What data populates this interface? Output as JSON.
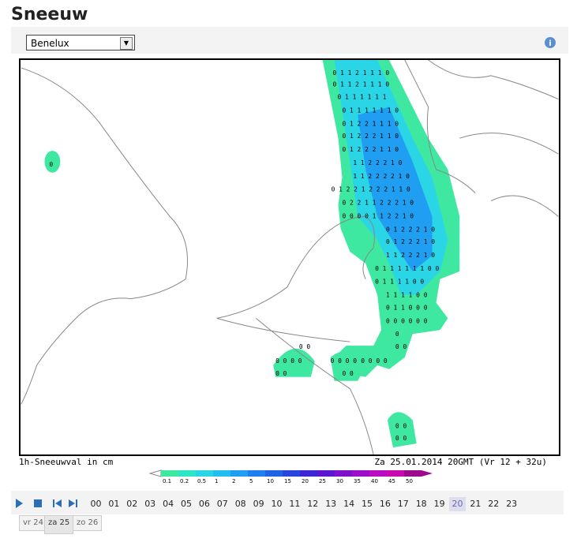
{
  "header": {
    "title": "Sneeuw"
  },
  "toolbar": {
    "region_select": "Benelux"
  },
  "map": {
    "caption_left": "1h-Sneeuwval in cm",
    "caption_right": "Za 25.01.2014 20GMT (Vr 12 + 32u)",
    "grid_rows": [
      "0 1 1 2 1 1 1 0",
      "0 1 1 2 1 1 1 0",
      "0 1 1 1 1 1 1",
      "0 1 1 1 1 1 1 0",
      "0 1 2 2 1 1 1 0",
      "0 1 2 2 2 1 1 0",
      "0 1 2 2 2 1 1 0",
      "1 1 2 2 2 1 0",
      "1 1 2 2 2 2 1 0",
      "0 1 2 2 1 2 2 2 1 1 0",
      "0 2 2 1 1 2 2 2 1 0",
      "0 0 0 0 1 1 2 2 1 0",
      "0 1 2 2 2 1 0",
      "0 1 2 2 2 1 0",
      "1 1 2 2 2 1 0",
      "0 1 1 1 1 1 1 0 0",
      "0 1 1 1 1 0 0",
      "1 1 1 1 0 0",
      "0 1 1 0 0 0",
      "0 0 0 0 0 0",
      "0",
      "0 0",
      "0 0",
      "0 0 0 0",
      "0 0 0 0",
      "0 0 0 0",
      "0 0",
      "0 0",
      "0 0",
      "0 0",
      "0"
    ]
  },
  "legend": [
    {
      "label": "0.1",
      "color": "#3fe8a0"
    },
    {
      "label": "0.2",
      "color": "#2ee6c6"
    },
    {
      "label": "0.5",
      "color": "#2ad6e6"
    },
    {
      "label": "1",
      "color": "#24bdf2"
    },
    {
      "label": "2",
      "color": "#1f9ef2"
    },
    {
      "label": "5",
      "color": "#1e80ef"
    },
    {
      "label": "10",
      "color": "#2062e6"
    },
    {
      "label": "15",
      "color": "#2a44de"
    },
    {
      "label": "20",
      "color": "#3a26d6"
    },
    {
      "label": "25",
      "color": "#5a16d0"
    },
    {
      "label": "30",
      "color": "#7c12cc"
    },
    {
      "label": "35",
      "color": "#9c0ec8"
    },
    {
      "label": "40",
      "color": "#ba0cc2"
    },
    {
      "label": "45",
      "color": "#c80ab0"
    },
    {
      "label": "50",
      "color": "#9c0a8e"
    }
  ],
  "hours": {
    "items": [
      "00",
      "01",
      "02",
      "03",
      "04",
      "05",
      "06",
      "07",
      "08",
      "09",
      "10",
      "11",
      "12",
      "13",
      "14",
      "15",
      "16",
      "17",
      "18",
      "19",
      "20",
      "21",
      "22",
      "23"
    ],
    "selected": "20"
  },
  "days": {
    "items": [
      "vr 24",
      "za 25",
      "zo 26"
    ],
    "selected": "za 25"
  }
}
